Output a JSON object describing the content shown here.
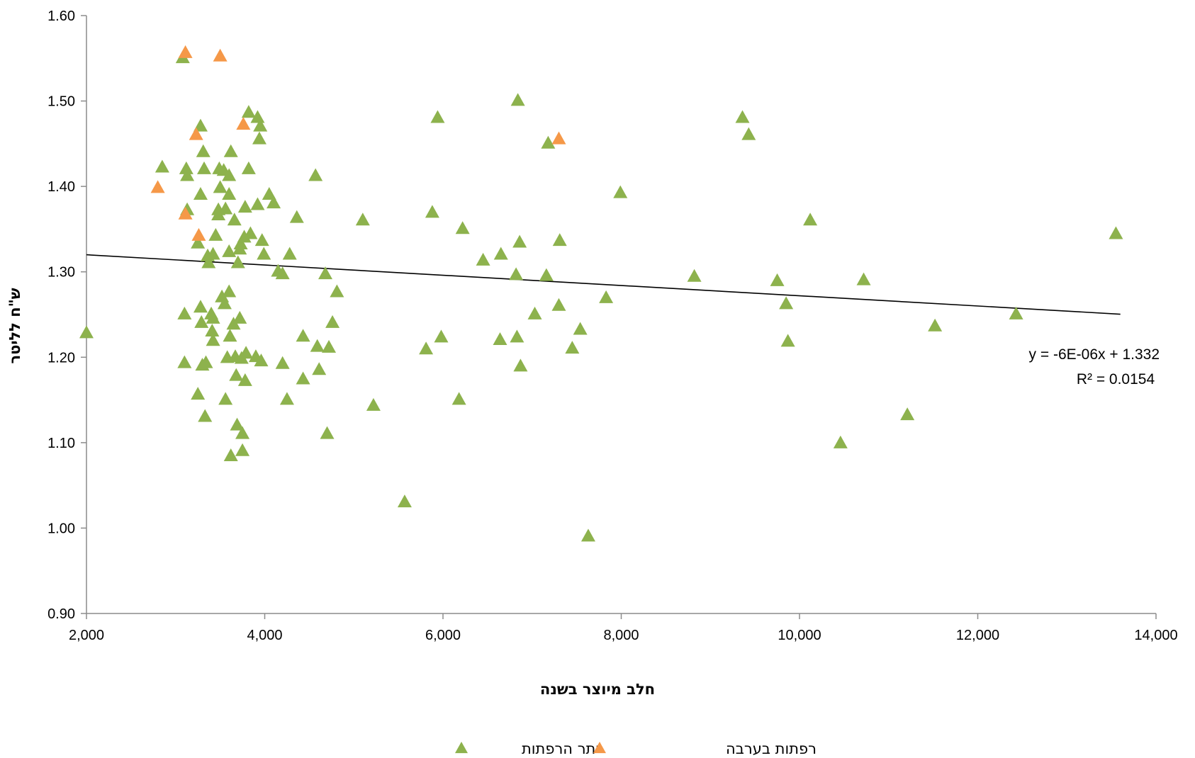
{
  "chart_data": {
    "type": "scatter",
    "title": "",
    "xlabel": "חלב מיוצר בשנה",
    "ylabel": "ש\"ח לליטר",
    "xlim": [
      2000,
      14000
    ],
    "ylim": [
      0.9,
      1.6
    ],
    "x_ticks": [
      2000,
      4000,
      6000,
      8000,
      10000,
      12000,
      14000
    ],
    "x_tick_labels": [
      "2,000",
      "4,000",
      "6,000",
      "8,000",
      "10,000",
      "12,000",
      "14,000"
    ],
    "y_ticks": [
      0.9,
      1.0,
      1.1,
      1.2,
      1.3,
      1.4,
      1.5,
      1.6
    ],
    "y_tick_labels": [
      "0.90",
      "1.00",
      "1.10",
      "1.20",
      "1.30",
      "1.40",
      "1.50",
      "1.60"
    ],
    "grid": false,
    "legend_position": "bottom",
    "trendline": {
      "slope": -6e-06,
      "intercept": 1.332,
      "x_range": [
        2000,
        13600
      ],
      "equation_label": "y = -6E-06x + 1.332",
      "r2_label": "R² = 0.0154",
      "color": "#000000"
    },
    "series": [
      {
        "name": "יתר הרפתות",
        "color": "#8db24d",
        "marker": "triangle-icon",
        "points": [
          [
            2000,
            1.228
          ],
          [
            3080,
            1.55
          ],
          [
            2850,
            1.422
          ],
          [
            3120,
            1.42
          ],
          [
            3130,
            1.412
          ],
          [
            3280,
            1.47
          ],
          [
            3310,
            1.44
          ],
          [
            3320,
            1.42
          ],
          [
            3280,
            1.39
          ],
          [
            3130,
            1.372
          ],
          [
            3250,
            1.333
          ],
          [
            3100,
            1.25
          ],
          [
            3100,
            1.193
          ],
          [
            3280,
            1.258
          ],
          [
            3290,
            1.24
          ],
          [
            3300,
            1.19
          ],
          [
            3340,
            1.193
          ],
          [
            3250,
            1.156
          ],
          [
            3330,
            1.13
          ],
          [
            3360,
            1.318
          ],
          [
            3370,
            1.31
          ],
          [
            3420,
            1.32
          ],
          [
            3400,
            1.25
          ],
          [
            3420,
            1.245
          ],
          [
            3410,
            1.23
          ],
          [
            3420,
            1.219
          ],
          [
            3450,
            1.342
          ],
          [
            3480,
            1.366
          ],
          [
            3480,
            1.372
          ],
          [
            3490,
            1.42
          ],
          [
            3500,
            1.398
          ],
          [
            3520,
            1.27
          ],
          [
            3540,
            1.418
          ],
          [
            3550,
            1.262
          ],
          [
            3560,
            1.373
          ],
          [
            3560,
            1.15
          ],
          [
            3580,
            1.199
          ],
          [
            3600,
            1.39
          ],
          [
            3600,
            1.412
          ],
          [
            3600,
            1.276
          ],
          [
            3600,
            1.323
          ],
          [
            3610,
            1.224
          ],
          [
            3620,
            1.084
          ],
          [
            3620,
            1.44
          ],
          [
            3650,
            1.238
          ],
          [
            3660,
            1.36
          ],
          [
            3670,
            1.2
          ],
          [
            3680,
            1.178
          ],
          [
            3690,
            1.12
          ],
          [
            3700,
            1.31
          ],
          [
            3720,
            1.245
          ],
          [
            3720,
            1.326
          ],
          [
            3730,
            1.332
          ],
          [
            3740,
            1.198
          ],
          [
            3750,
            1.11
          ],
          [
            3750,
            1.09
          ],
          [
            3770,
            1.34
          ],
          [
            3780,
            1.375
          ],
          [
            3780,
            1.172
          ],
          [
            3790,
            1.204
          ],
          [
            3820,
            1.486
          ],
          [
            3820,
            1.42
          ],
          [
            3840,
            1.344
          ],
          [
            3900,
            1.2
          ],
          [
            3920,
            1.378
          ],
          [
            3920,
            1.48
          ],
          [
            3940,
            1.455
          ],
          [
            3950,
            1.47
          ],
          [
            3960,
            1.195
          ],
          [
            3970,
            1.336
          ],
          [
            3990,
            1.32
          ],
          [
            4050,
            1.39
          ],
          [
            4100,
            1.38
          ],
          [
            4150,
            1.3
          ],
          [
            4200,
            1.297
          ],
          [
            4200,
            1.192
          ],
          [
            4250,
            1.15
          ],
          [
            4280,
            1.32
          ],
          [
            4360,
            1.363
          ],
          [
            4430,
            1.224
          ],
          [
            4430,
            1.174
          ],
          [
            4570,
            1.412
          ],
          [
            4590,
            1.212
          ],
          [
            4610,
            1.185
          ],
          [
            4680,
            1.297
          ],
          [
            4700,
            1.11
          ],
          [
            4720,
            1.211
          ],
          [
            4760,
            1.24
          ],
          [
            4810,
            1.276
          ],
          [
            5100,
            1.36
          ],
          [
            5220,
            1.143
          ],
          [
            5570,
            1.03
          ],
          [
            5810,
            1.209
          ],
          [
            5880,
            1.369
          ],
          [
            5940,
            1.48
          ],
          [
            5980,
            1.223
          ],
          [
            6180,
            1.15
          ],
          [
            6220,
            1.35
          ],
          [
            6450,
            1.313
          ],
          [
            6640,
            1.22
          ],
          [
            6650,
            1.32
          ],
          [
            6820,
            1.296
          ],
          [
            6830,
            1.223
          ],
          [
            6840,
            1.5
          ],
          [
            6860,
            1.334
          ],
          [
            6870,
            1.189
          ],
          [
            7030,
            1.25
          ],
          [
            7160,
            1.295
          ],
          [
            7180,
            1.45
          ],
          [
            7300,
            1.26
          ],
          [
            7310,
            1.336
          ],
          [
            7450,
            1.21
          ],
          [
            7540,
            1.232
          ],
          [
            7630,
            0.99
          ],
          [
            7830,
            1.269
          ],
          [
            7990,
            1.392
          ],
          [
            8820,
            1.294
          ],
          [
            9360,
            1.48
          ],
          [
            9430,
            1.46
          ],
          [
            9750,
            1.289
          ],
          [
            9850,
            1.262
          ],
          [
            9870,
            1.218
          ],
          [
            10120,
            1.36
          ],
          [
            10460,
            1.099
          ],
          [
            10720,
            1.29
          ],
          [
            11210,
            1.132
          ],
          [
            11520,
            1.236
          ],
          [
            12430,
            1.25
          ],
          [
            13550,
            1.344
          ]
        ]
      },
      {
        "name": "רפתות בערבה",
        "color": "#f59848",
        "marker": "triangle-icon",
        "points": [
          [
            3110,
            1.556
          ],
          [
            3500,
            1.552
          ],
          [
            3230,
            1.46
          ],
          [
            3760,
            1.472
          ],
          [
            2800,
            1.398
          ],
          [
            3110,
            1.367
          ],
          [
            3260,
            1.342
          ],
          [
            7300,
            1.455
          ]
        ]
      }
    ]
  }
}
